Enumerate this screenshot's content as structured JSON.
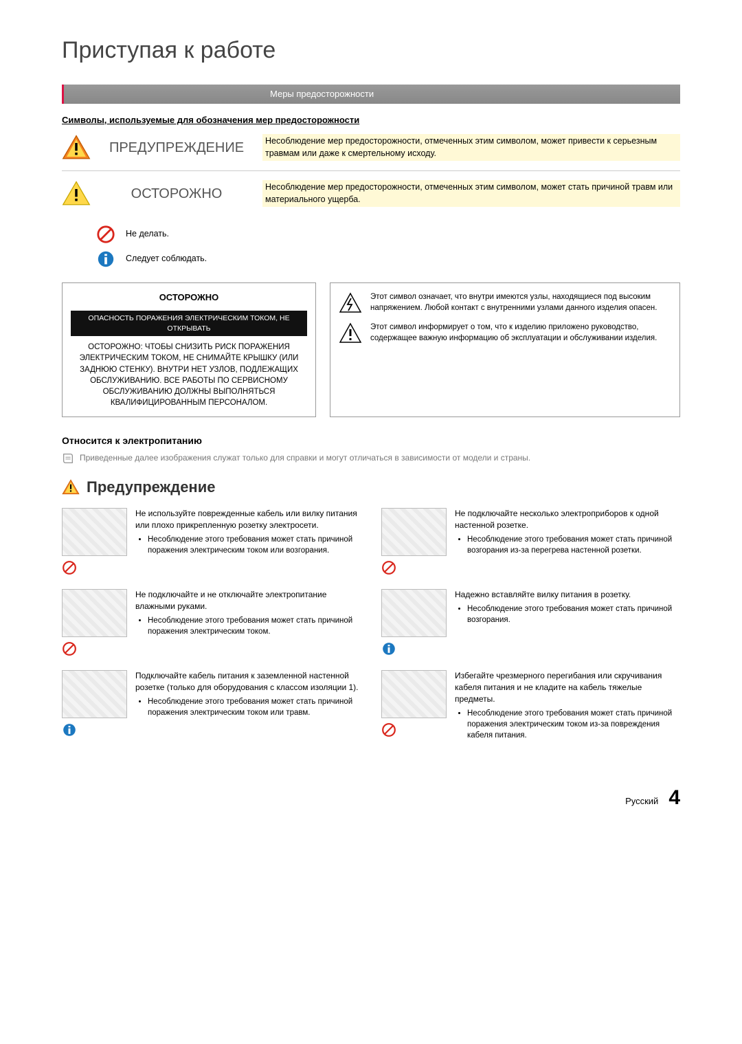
{
  "page_title": "Приступая к работе",
  "bar_title": "Меры предосторожности",
  "symbols_heading": "Символы, используемые для обозначения мер предосторожности",
  "rows": [
    {
      "label": "ПРЕДУПРЕЖДЕНИЕ",
      "desc": "Несоблюдение мер предосторожности, отмеченных этим символом, может привести к серьезным травмам или даже к смертельному исходу."
    },
    {
      "label": "ОСТОРОЖНО",
      "desc": "Несоблюдение мер предосторожности, отмеченных этим символом, может стать причиной травм или материального ущерба."
    }
  ],
  "mini": [
    {
      "text": "Не делать."
    },
    {
      "text": "Следует соблюдать."
    }
  ],
  "box_left": {
    "title": "ОСТОРОЖНО",
    "bar": "ОПАСНОСТЬ ПОРАЖЕНИЯ ЭЛЕКТРИЧЕСКИМ ТОКОМ, НЕ ОТКРЫВАТЬ",
    "body": "ОСТОРОЖНО: ЧТОБЫ СНИЗИТЬ РИСК ПОРАЖЕНИЯ ЭЛЕКТРИЧЕСКИМ ТОКОМ, НЕ СНИМАЙТЕ КРЫШКУ (ИЛИ ЗАДНЮЮ СТЕНКУ). ВНУТРИ НЕТ УЗЛОВ, ПОДЛЕЖАЩИХ ОБСЛУЖИВАНИЮ. ВСЕ РАБОТЫ ПО СЕРВИСНОМУ ОБСЛУЖИВАНИЮ ДОЛЖНЫ ВЫПОЛНЯТЬСЯ КВАЛИФИЦИРОВАННЫМ ПЕРСОНАЛОМ."
  },
  "box_right": [
    "Этот символ означает, что внутри имеются узлы, находящиеся под высоким напряжением. Любой контакт с внутренними узлами данного изделия опасен.",
    "Этот символ информирует о том, что к изделию приложено руководство, содержащее важную информацию об эксплуатации и обслуживании изделия."
  ],
  "section_label": "Относится к электропитанию",
  "note": "Приведенные далее изображения служат только для справки и могут отличаться в зависимости от модели и страны.",
  "warning_heading": "Предупреждение",
  "items": [
    {
      "sym": "prohibit",
      "lead": "Не используйте поврежденные кабель или вилку питания или плохо прикрепленную розетку электросети.",
      "bullets": [
        "Несоблюдение этого требования может стать причиной поражения электрическим током или возгорания."
      ]
    },
    {
      "sym": "prohibit",
      "lead": "Не подключайте несколько электроприборов к одной настенной розетке.",
      "bullets": [
        "Несоблюдение этого требования может стать причиной возгорания из-за перегрева настенной розетки."
      ]
    },
    {
      "sym": "prohibit",
      "lead": "Не подключайте и не отключайте электропитание влажными руками.",
      "bullets": [
        "Несоблюдение этого требования может стать причиной поражения электрическим током."
      ]
    },
    {
      "sym": "info",
      "lead": "Надежно вставляйте вилку питания в розетку.",
      "bullets": [
        "Несоблюдение этого требования может стать причиной возгорания."
      ]
    },
    {
      "sym": "info",
      "lead": "Подключайте кабель питания к заземленной настенной розетке (только для оборудования с классом изоляции 1).",
      "bullets": [
        "Несоблюдение этого требования может стать причиной поражения электрическим током или травм."
      ]
    },
    {
      "sym": "prohibit",
      "lead": "Избегайте чрезмерного перегибания или скручивания кабеля питания и не кладите на кабель тяжелые предметы.",
      "bullets": [
        "Несоблюдение этого требования может стать причиной поражения электрическим током из-за повреждения кабеля питания."
      ]
    }
  ],
  "footer": {
    "lang": "Русский",
    "page": "4"
  },
  "colors": {
    "accent": "#d14",
    "highlight_bg": "#fff9d6",
    "warn_orange": "#f58220",
    "warn_yellow": "#ffd84a",
    "prohibit_red": "#d9261c",
    "info_blue": "#1c78c0"
  }
}
